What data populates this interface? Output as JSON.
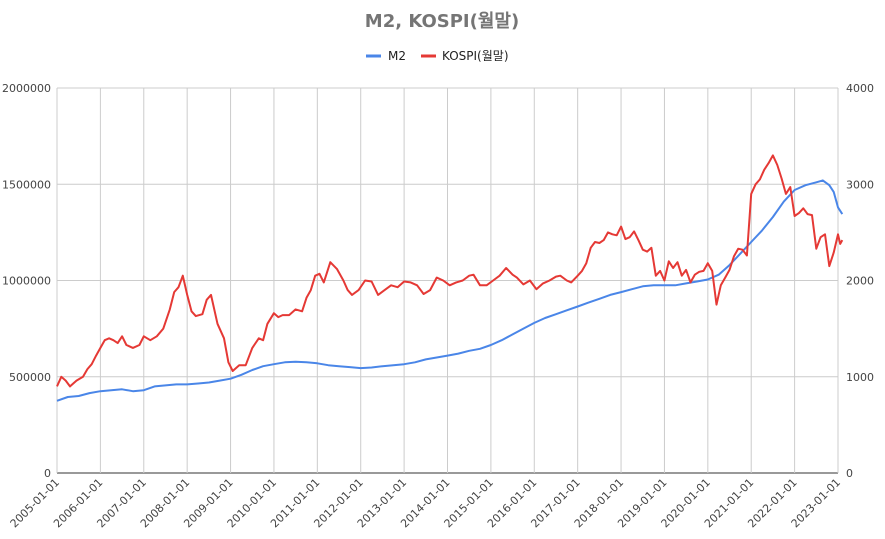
{
  "chart_data": {
    "type": "line",
    "title": "M2, KOSPI(월말)",
    "legend_position": "top-center",
    "xlabel": "",
    "ylabel_left": "",
    "ylabel_right": "",
    "x_range": [
      "2005-01-01",
      "2023-01-01"
    ],
    "x_ticks": [
      "2005-01-01",
      "2006-01-01",
      "2007-01-01",
      "2008-01-01",
      "2009-01-01",
      "2010-01-01",
      "2011-01-01",
      "2012-01-01",
      "2013-01-01",
      "2014-01-01",
      "2015-01-01",
      "2016-01-01",
      "2017-01-01",
      "2018-01-01",
      "2019-01-01",
      "2020-01-01",
      "2021-01-01",
      "2022-01-01",
      "2023-01-01"
    ],
    "y_left": {
      "min": 0,
      "max": 2000000,
      "ticks": [
        "0",
        "500000",
        "1000000",
        "1500000",
        "2000000"
      ]
    },
    "y_right": {
      "min": 0,
      "max": 4000,
      "ticks": [
        "0",
        "1000",
        "2000",
        "3000",
        "4000"
      ]
    },
    "grid": true,
    "series": [
      {
        "name": "M2",
        "axis": "left",
        "color": "#4a86e8",
        "points": [
          [
            2005.0,
            375000
          ],
          [
            2005.25,
            395000
          ],
          [
            2005.5,
            400000
          ],
          [
            2005.75,
            415000
          ],
          [
            2006.0,
            425000
          ],
          [
            2006.25,
            430000
          ],
          [
            2006.5,
            435000
          ],
          [
            2006.75,
            425000
          ],
          [
            2007.0,
            430000
          ],
          [
            2007.25,
            450000
          ],
          [
            2007.5,
            455000
          ],
          [
            2007.75,
            460000
          ],
          [
            2008.0,
            460000
          ],
          [
            2008.25,
            465000
          ],
          [
            2008.5,
            470000
          ],
          [
            2008.75,
            480000
          ],
          [
            2009.0,
            490000
          ],
          [
            2009.25,
            510000
          ],
          [
            2009.5,
            535000
          ],
          [
            2009.75,
            555000
          ],
          [
            2010.0,
            565000
          ],
          [
            2010.25,
            575000
          ],
          [
            2010.5,
            578000
          ],
          [
            2010.75,
            575000
          ],
          [
            2011.0,
            570000
          ],
          [
            2011.25,
            560000
          ],
          [
            2011.5,
            555000
          ],
          [
            2011.75,
            550000
          ],
          [
            2012.0,
            545000
          ],
          [
            2012.25,
            548000
          ],
          [
            2012.5,
            555000
          ],
          [
            2012.75,
            560000
          ],
          [
            2013.0,
            565000
          ],
          [
            2013.25,
            575000
          ],
          [
            2013.5,
            590000
          ],
          [
            2013.75,
            600000
          ],
          [
            2014.0,
            610000
          ],
          [
            2014.25,
            620000
          ],
          [
            2014.5,
            635000
          ],
          [
            2014.75,
            645000
          ],
          [
            2015.0,
            665000
          ],
          [
            2015.25,
            690000
          ],
          [
            2015.5,
            720000
          ],
          [
            2015.75,
            750000
          ],
          [
            2016.0,
            780000
          ],
          [
            2016.25,
            805000
          ],
          [
            2016.5,
            825000
          ],
          [
            2016.75,
            845000
          ],
          [
            2017.0,
            865000
          ],
          [
            2017.25,
            885000
          ],
          [
            2017.5,
            905000
          ],
          [
            2017.75,
            925000
          ],
          [
            2018.0,
            940000
          ],
          [
            2018.25,
            955000
          ],
          [
            2018.5,
            970000
          ],
          [
            2018.75,
            975000
          ],
          [
            2019.0,
            975000
          ],
          [
            2019.25,
            975000
          ],
          [
            2019.5,
            985000
          ],
          [
            2019.75,
            995000
          ],
          [
            2020.0,
            1005000
          ],
          [
            2020.25,
            1030000
          ],
          [
            2020.5,
            1080000
          ],
          [
            2020.75,
            1140000
          ],
          [
            2021.0,
            1200000
          ],
          [
            2021.25,
            1260000
          ],
          [
            2021.5,
            1330000
          ],
          [
            2021.75,
            1410000
          ],
          [
            2022.0,
            1470000
          ],
          [
            2022.25,
            1495000
          ],
          [
            2022.5,
            1510000
          ],
          [
            2022.65,
            1520000
          ],
          [
            2022.8,
            1495000
          ],
          [
            2022.9,
            1460000
          ],
          [
            2023.0,
            1380000
          ],
          [
            2023.1,
            1345000
          ]
        ]
      },
      {
        "name": "KOSPI(월말)",
        "axis": "right",
        "color": "#e53935",
        "points": [
          [
            2005.0,
            900
          ],
          [
            2005.1,
            1000
          ],
          [
            2005.2,
            960
          ],
          [
            2005.3,
            900
          ],
          [
            2005.45,
            960
          ],
          [
            2005.6,
            1000
          ],
          [
            2005.7,
            1080
          ],
          [
            2005.8,
            1130
          ],
          [
            2005.9,
            1220
          ],
          [
            2006.0,
            1300
          ],
          [
            2006.1,
            1380
          ],
          [
            2006.2,
            1400
          ],
          [
            2006.3,
            1380
          ],
          [
            2006.4,
            1350
          ],
          [
            2006.5,
            1420
          ],
          [
            2006.6,
            1330
          ],
          [
            2006.75,
            1300
          ],
          [
            2006.9,
            1330
          ],
          [
            2007.0,
            1420
          ],
          [
            2007.15,
            1380
          ],
          [
            2007.3,
            1420
          ],
          [
            2007.45,
            1500
          ],
          [
            2007.6,
            1700
          ],
          [
            2007.7,
            1880
          ],
          [
            2007.8,
            1930
          ],
          [
            2007.9,
            2050
          ],
          [
            2008.0,
            1850
          ],
          [
            2008.1,
            1680
          ],
          [
            2008.2,
            1630
          ],
          [
            2008.35,
            1650
          ],
          [
            2008.45,
            1800
          ],
          [
            2008.55,
            1850
          ],
          [
            2008.7,
            1550
          ],
          [
            2008.85,
            1400
          ],
          [
            2008.95,
            1150
          ],
          [
            2009.05,
            1060
          ],
          [
            2009.2,
            1120
          ],
          [
            2009.35,
            1120
          ],
          [
            2009.5,
            1300
          ],
          [
            2009.65,
            1400
          ],
          [
            2009.75,
            1380
          ],
          [
            2009.85,
            1550
          ],
          [
            2010.0,
            1660
          ],
          [
            2010.1,
            1620
          ],
          [
            2010.2,
            1640
          ],
          [
            2010.35,
            1640
          ],
          [
            2010.5,
            1700
          ],
          [
            2010.65,
            1680
          ],
          [
            2010.75,
            1820
          ],
          [
            2010.85,
            1900
          ],
          [
            2010.95,
            2050
          ],
          [
            2011.05,
            2070
          ],
          [
            2011.15,
            1980
          ],
          [
            2011.3,
            2190
          ],
          [
            2011.45,
            2120
          ],
          [
            2011.6,
            2000
          ],
          [
            2011.7,
            1900
          ],
          [
            2011.8,
            1850
          ],
          [
            2011.95,
            1900
          ],
          [
            2012.1,
            2000
          ],
          [
            2012.25,
            1990
          ],
          [
            2012.4,
            1850
          ],
          [
            2012.55,
            1900
          ],
          [
            2012.7,
            1950
          ],
          [
            2012.85,
            1930
          ],
          [
            2013.0,
            1990
          ],
          [
            2013.15,
            1980
          ],
          [
            2013.3,
            1950
          ],
          [
            2013.45,
            1860
          ],
          [
            2013.6,
            1900
          ],
          [
            2013.75,
            2030
          ],
          [
            2013.9,
            2000
          ],
          [
            2014.05,
            1950
          ],
          [
            2014.2,
            1980
          ],
          [
            2014.35,
            2000
          ],
          [
            2014.5,
            2050
          ],
          [
            2014.6,
            2060
          ],
          [
            2014.75,
            1950
          ],
          [
            2014.9,
            1950
          ],
          [
            2015.05,
            2000
          ],
          [
            2015.2,
            2050
          ],
          [
            2015.35,
            2130
          ],
          [
            2015.5,
            2060
          ],
          [
            2015.6,
            2030
          ],
          [
            2015.75,
            1960
          ],
          [
            2015.9,
            2000
          ],
          [
            2016.05,
            1910
          ],
          [
            2016.2,
            1970
          ],
          [
            2016.35,
            2000
          ],
          [
            2016.5,
            2040
          ],
          [
            2016.6,
            2050
          ],
          [
            2016.75,
            2000
          ],
          [
            2016.85,
            1980
          ],
          [
            2017.0,
            2050
          ],
          [
            2017.1,
            2100
          ],
          [
            2017.2,
            2180
          ],
          [
            2017.3,
            2340
          ],
          [
            2017.4,
            2400
          ],
          [
            2017.5,
            2390
          ],
          [
            2017.6,
            2420
          ],
          [
            2017.7,
            2500
          ],
          [
            2017.8,
            2480
          ],
          [
            2017.9,
            2470
          ],
          [
            2018.0,
            2560
          ],
          [
            2018.1,
            2430
          ],
          [
            2018.2,
            2450
          ],
          [
            2018.3,
            2510
          ],
          [
            2018.4,
            2420
          ],
          [
            2018.5,
            2320
          ],
          [
            2018.6,
            2300
          ],
          [
            2018.7,
            2340
          ],
          [
            2018.8,
            2050
          ],
          [
            2018.9,
            2100
          ],
          [
            2019.0,
            2000
          ],
          [
            2019.1,
            2200
          ],
          [
            2019.2,
            2130
          ],
          [
            2019.3,
            2190
          ],
          [
            2019.4,
            2050
          ],
          [
            2019.5,
            2110
          ],
          [
            2019.6,
            1980
          ],
          [
            2019.7,
            2060
          ],
          [
            2019.8,
            2090
          ],
          [
            2019.9,
            2100
          ],
          [
            2020.0,
            2180
          ],
          [
            2020.1,
            2100
          ],
          [
            2020.2,
            1750
          ],
          [
            2020.3,
            1950
          ],
          [
            2020.4,
            2030
          ],
          [
            2020.5,
            2110
          ],
          [
            2020.6,
            2250
          ],
          [
            2020.7,
            2330
          ],
          [
            2020.8,
            2320
          ],
          [
            2020.9,
            2260
          ],
          [
            2021.0,
            2900
          ],
          [
            2021.1,
            3000
          ],
          [
            2021.2,
            3050
          ],
          [
            2021.3,
            3150
          ],
          [
            2021.4,
            3220
          ],
          [
            2021.5,
            3300
          ],
          [
            2021.6,
            3200
          ],
          [
            2021.7,
            3060
          ],
          [
            2021.8,
            2900
          ],
          [
            2021.9,
            2970
          ],
          [
            2022.0,
            2670
          ],
          [
            2022.1,
            2700
          ],
          [
            2022.2,
            2750
          ],
          [
            2022.3,
            2690
          ],
          [
            2022.4,
            2680
          ],
          [
            2022.5,
            2330
          ],
          [
            2022.6,
            2450
          ],
          [
            2022.7,
            2480
          ],
          [
            2022.8,
            2150
          ],
          [
            2022.9,
            2290
          ],
          [
            2023.0,
            2480
          ],
          [
            2023.05,
            2380
          ],
          [
            2023.1,
            2420
          ]
        ]
      }
    ]
  }
}
